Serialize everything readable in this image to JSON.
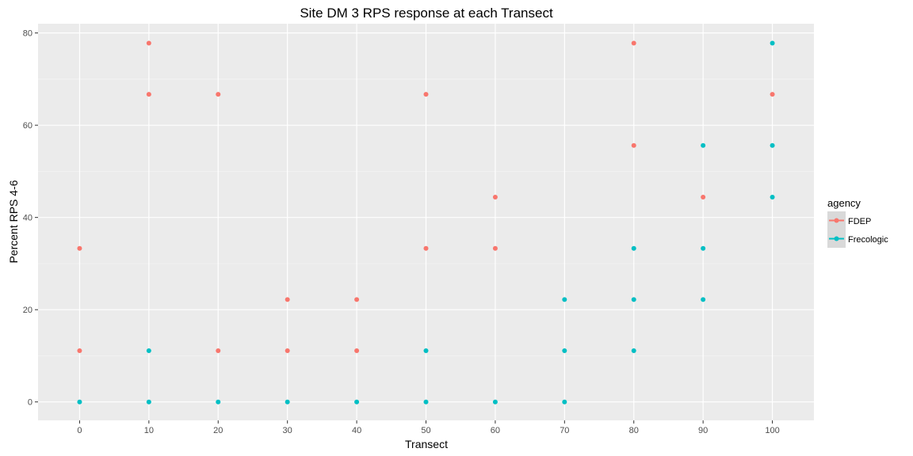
{
  "chart_data": {
    "type": "scatter",
    "title": "Site DM 3 RPS response at each Transect",
    "xlabel": "Transect",
    "ylabel": "Percent RPS 4-6",
    "xlim": [
      -6,
      106
    ],
    "ylim": [
      -4,
      82
    ],
    "x_ticks": [
      0,
      10,
      20,
      30,
      40,
      50,
      60,
      70,
      80,
      90,
      100
    ],
    "y_ticks": [
      0,
      20,
      40,
      60,
      80
    ],
    "grid": true,
    "legend": {
      "title": "agency",
      "placement": "right"
    },
    "series": [
      {
        "name": "FDEP",
        "color": "#f8766d",
        "points": [
          [
            0,
            33.3
          ],
          [
            0,
            11.1
          ],
          [
            10,
            77.8
          ],
          [
            10,
            66.7
          ],
          [
            20,
            66.7
          ],
          [
            20,
            11.1
          ],
          [
            30,
            22.2
          ],
          [
            30,
            11.1
          ],
          [
            40,
            22.2
          ],
          [
            40,
            11.1
          ],
          [
            50,
            66.7
          ],
          [
            50,
            33.3
          ],
          [
            60,
            44.4
          ],
          [
            60,
            33.3
          ],
          [
            80,
            77.8
          ],
          [
            80,
            55.6
          ],
          [
            90,
            44.4
          ],
          [
            100,
            66.7
          ]
        ]
      },
      {
        "name": "Frecologic",
        "color": "#00bfc4",
        "points": [
          [
            0,
            0
          ],
          [
            10,
            11.1
          ],
          [
            10,
            0
          ],
          [
            20,
            0
          ],
          [
            30,
            0
          ],
          [
            40,
            0
          ],
          [
            50,
            11.1
          ],
          [
            50,
            0
          ],
          [
            60,
            0
          ],
          [
            70,
            22.2
          ],
          [
            70,
            11.1
          ],
          [
            70,
            0
          ],
          [
            80,
            33.3
          ],
          [
            80,
            22.2
          ],
          [
            80,
            11.1
          ],
          [
            90,
            55.6
          ],
          [
            90,
            33.3
          ],
          [
            90,
            22.2
          ],
          [
            100,
            77.8
          ],
          [
            100,
            55.6
          ],
          [
            100,
            44.4
          ]
        ]
      }
    ]
  }
}
